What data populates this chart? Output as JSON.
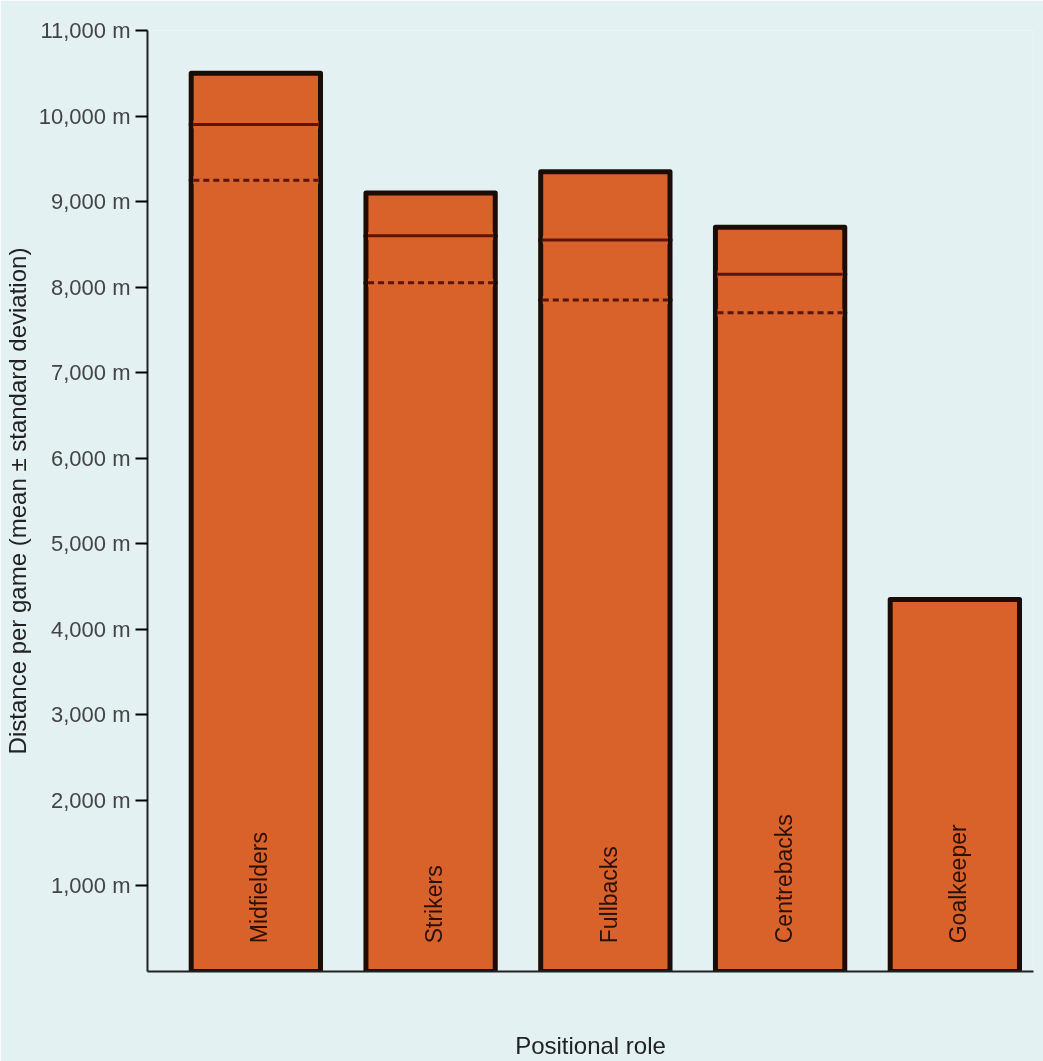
{
  "chart_data": {
    "type": "bar",
    "stacked": true,
    "xlabel": "Positional role",
    "ylabel": "Distance per game (mean ± standard deviation)",
    "categories": [
      "Midfielders",
      "Strikers",
      "Fullbacks",
      "Centrebacks",
      "Goalkeeper"
    ],
    "series": [
      {
        "color": "#d9622b",
        "line_style": "dashed",
        "values": [
          9250,
          8050,
          7850,
          7700,
          null
        ]
      },
      {
        "color": "#d9622b",
        "line_style": "solid",
        "values": [
          650,
          550,
          700,
          450,
          null
        ]
      },
      {
        "color": "#d9622b",
        "values": [
          600,
          500,
          800,
          550,
          4350
        ]
      }
    ],
    "ylim": [
      0,
      11000
    ],
    "yticks": [
      {
        "value": 1000,
        "label": "1,000 m"
      },
      {
        "value": 2000,
        "label": "2,000 m"
      },
      {
        "value": 3000,
        "label": "3,000 m"
      },
      {
        "value": 4000,
        "label": "4,000 m"
      },
      {
        "value": 5000,
        "label": "5,000 m"
      },
      {
        "value": 6000,
        "label": "6,000 m"
      },
      {
        "value": 7000,
        "label": "7,000 m"
      },
      {
        "value": 8000,
        "label": "8,000 m"
      },
      {
        "value": 9000,
        "label": "9,000 m"
      },
      {
        "value": 10000,
        "label": "10,000 m"
      },
      {
        "value": 11000,
        "label": "11,000 m"
      }
    ],
    "grid": false
  }
}
